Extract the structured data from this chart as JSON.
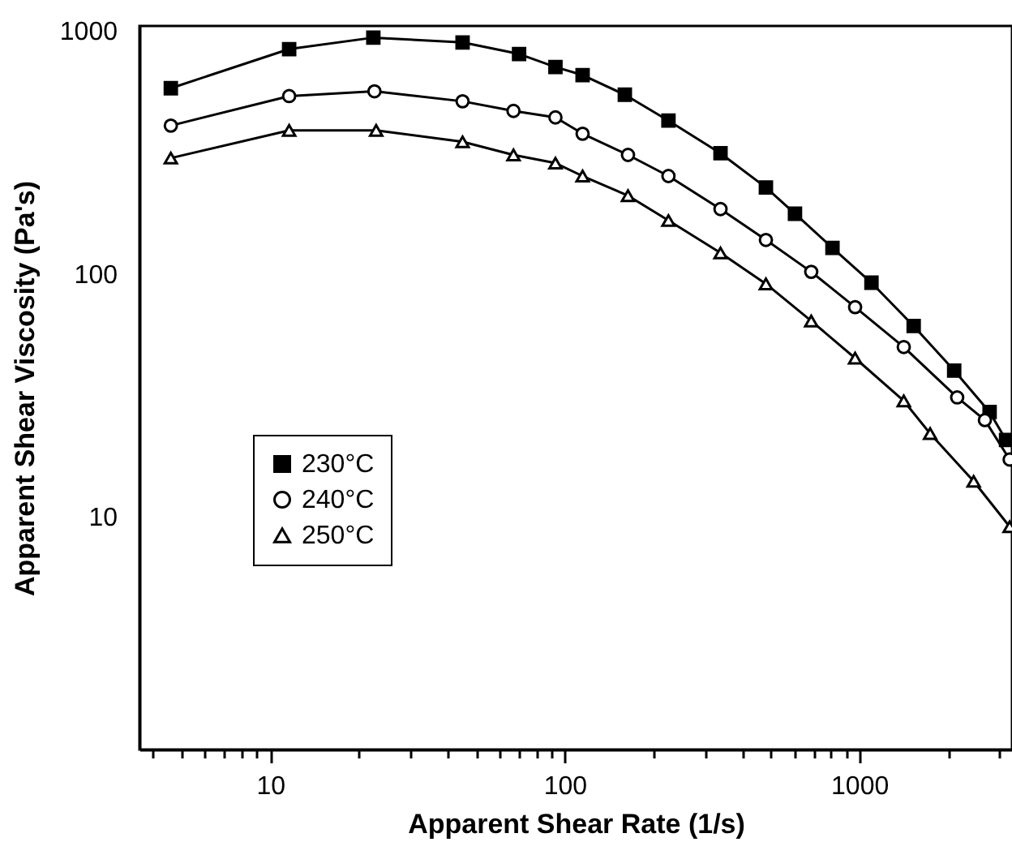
{
  "chart_data": {
    "type": "line",
    "xlabel": "Apparent Shear Rate (1/s)",
    "ylabel": "Apparent Shear Viscosity (Pa's)",
    "log": "xy",
    "grid": false,
    "legend": "left",
    "line_style": "solid",
    "xlim": [
      3.6,
      3300
    ],
    "ylim": [
      1.1,
      1050
    ],
    "xticks": [
      {
        "value": 4,
        "label": null
      },
      {
        "value": 5,
        "label": null
      },
      {
        "value": 6,
        "label": null
      },
      {
        "value": 7,
        "label": null
      },
      {
        "value": 8,
        "label": null
      },
      {
        "value": 9,
        "label": null
      },
      10,
      {
        "value": 20,
        "label": null
      },
      {
        "value": 30,
        "label": null
      },
      {
        "value": 40,
        "label": null
      },
      {
        "value": 50,
        "label": null
      },
      {
        "value": 60,
        "label": null
      },
      {
        "value": 70,
        "label": null
      },
      {
        "value": 80,
        "label": null
      },
      {
        "value": 90,
        "label": null
      },
      100,
      {
        "value": 200,
        "label": null
      },
      {
        "value": 300,
        "label": null
      },
      {
        "value": 400,
        "label": null
      },
      {
        "value": 500,
        "label": null
      },
      {
        "value": 600,
        "label": null
      },
      {
        "value": 700,
        "label": null
      },
      {
        "value": 800,
        "label": null
      },
      {
        "value": 900,
        "label": null
      },
      1000,
      {
        "value": 2000,
        "label": null
      },
      {
        "value": 3000,
        "label": null
      }
    ],
    "yticks": [
      10,
      100,
      1000
    ],
    "series": [
      {
        "name": "230°C",
        "color": "#000000",
        "marker": "square",
        "x": [
          4.6,
          11.6,
          22.4,
          45,
          70,
          93,
          115,
          160,
          225,
          338,
          482,
          605,
          811,
          1100,
          1530,
          2100,
          2770,
          3150
        ],
        "values": [
          582,
          843,
          940,
          898,
          805,
          711,
          659,
          547,
          428,
          314,
          227,
          177,
          128,
          92,
          61,
          40,
          27,
          20.7
        ]
      },
      {
        "name": "240°C",
        "color": "#000000",
        "marker": "circle",
        "x": [
          4.6,
          11.6,
          22.6,
          45,
          67,
          93,
          115,
          164,
          225,
          338,
          482,
          687,
          968,
          1416,
          2150,
          2670,
          3240
        ],
        "values": [
          408,
          540,
          565,
          514,
          469,
          441,
          378,
          309,
          253,
          185,
          138,
          102,
          73,
          50,
          31,
          25,
          17.2
        ]
      },
      {
        "name": "250°C",
        "color": "#000000",
        "marker": "triangle",
        "x": [
          4.6,
          11.6,
          22.9,
          45,
          67,
          93,
          115,
          164,
          225,
          338,
          482,
          687,
          968,
          1416,
          1740,
          2445,
          3240
        ],
        "values": [
          300,
          390,
          390,
          350,
          309,
          286,
          253,
          210,
          166,
          122,
          91,
          64,
          45,
          30,
          22,
          14,
          9.1
        ]
      }
    ]
  }
}
